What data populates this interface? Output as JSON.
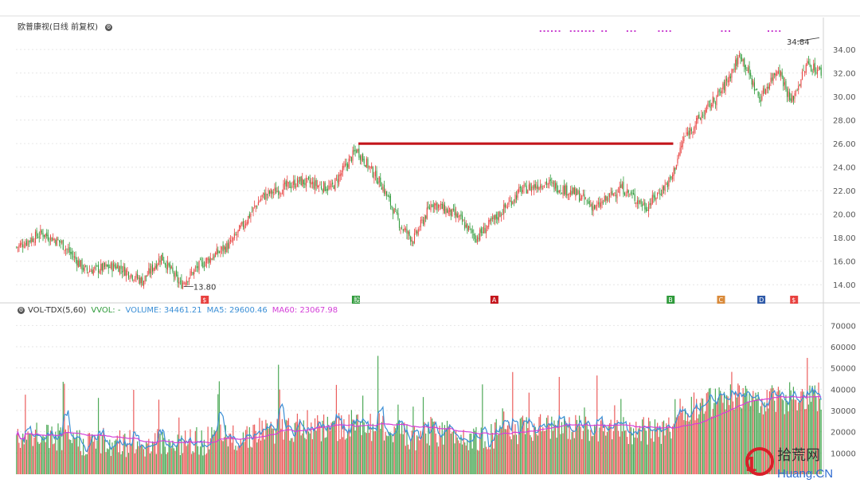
{
  "header": {
    "title": "欧普康视(日线 前复权)",
    "settings_icon": "gear-icon"
  },
  "volume_header": {
    "indicator": "VOL-TDX(5,60)",
    "vvol_label": "VVOL: -",
    "volume_label": "VOLUME: 34461.21",
    "ma5_label": "MA5: 29600.46",
    "ma60_label": "MA60: 23067.98"
  },
  "colors": {
    "up": "#e8413f",
    "down": "#2e9a3a",
    "ma5": "#3b8fd6",
    "ma60": "#d43fd8",
    "trendline": "#c4161c",
    "grid": "#e6e6e6",
    "axis_text": "#555555"
  },
  "chart_data": [
    {
      "type": "candlestick",
      "title": "欧普康视(日线 前复权)",
      "y_ticks": [
        "14.00",
        "16.00",
        "18.00",
        "20.00",
        "22.00",
        "24.00",
        "26.00",
        "28.00",
        "30.00",
        "32.00",
        "34.00"
      ],
      "ylim": [
        13,
        35.5
      ],
      "grid": true,
      "annotations": {
        "low_label": "13.80",
        "high_label": "34.84",
        "trendline_level": 26.0
      },
      "event_markers": [
        {
          "label": "$",
          "color": "#e8413f"
        },
        {
          "label": "股",
          "color": "#2e9a3a"
        },
        {
          "label": "A",
          "color": "#c4161c"
        },
        {
          "label": "B",
          "color": "#2e9a3a"
        },
        {
          "label": "C",
          "color": "#d98a3a"
        },
        {
          "label": "D",
          "color": "#2f5aa8"
        },
        {
          "label": "$",
          "color": "#e8413f"
        }
      ],
      "price_path": [
        {
          "i": 0,
          "p": 17.2
        },
        {
          "i": 20,
          "p": 18.4
        },
        {
          "i": 35,
          "p": 17.6
        },
        {
          "i": 55,
          "p": 15.2
        },
        {
          "i": 80,
          "p": 15.6
        },
        {
          "i": 100,
          "p": 14.3
        },
        {
          "i": 115,
          "p": 16.4
        },
        {
          "i": 130,
          "p": 14.0
        },
        {
          "i": 145,
          "p": 15.6
        },
        {
          "i": 170,
          "p": 17.5
        },
        {
          "i": 195,
          "p": 21.5
        },
        {
          "i": 225,
          "p": 22.8
        },
        {
          "i": 250,
          "p": 22.2
        },
        {
          "i": 270,
          "p": 25.5
        },
        {
          "i": 290,
          "p": 22.5
        },
        {
          "i": 305,
          "p": 19.0
        },
        {
          "i": 315,
          "p": 17.8
        },
        {
          "i": 330,
          "p": 21.0
        },
        {
          "i": 350,
          "p": 19.8
        },
        {
          "i": 365,
          "p": 18.0
        },
        {
          "i": 380,
          "p": 19.6
        },
        {
          "i": 400,
          "p": 22.0
        },
        {
          "i": 420,
          "p": 22.7
        },
        {
          "i": 445,
          "p": 21.7
        },
        {
          "i": 460,
          "p": 20.5
        },
        {
          "i": 480,
          "p": 22.3
        },
        {
          "i": 500,
          "p": 20.6
        },
        {
          "i": 520,
          "p": 23.0
        },
        {
          "i": 530,
          "p": 26.5
        },
        {
          "i": 545,
          "p": 28.5
        },
        {
          "i": 560,
          "p": 30.5
        },
        {
          "i": 575,
          "p": 33.6
        },
        {
          "i": 590,
          "p": 29.8
        },
        {
          "i": 605,
          "p": 32.5
        },
        {
          "i": 615,
          "p": 29.5
        },
        {
          "i": 628,
          "p": 32.8
        },
        {
          "i": 640,
          "p": 32.0
        }
      ]
    },
    {
      "type": "bar",
      "title": "VOL-TDX(5,60)",
      "y_ticks": [
        "10000",
        "20000",
        "30000",
        "40000",
        "50000",
        "60000",
        "70000"
      ],
      "ylim": [
        0,
        75000
      ],
      "grid": true,
      "series": [
        {
          "name": "VOLUME",
          "last": 34461.21
        },
        {
          "name": "MA5",
          "last": 29600.46
        },
        {
          "name": "MA60",
          "last": 23067.98
        }
      ]
    }
  ]
}
